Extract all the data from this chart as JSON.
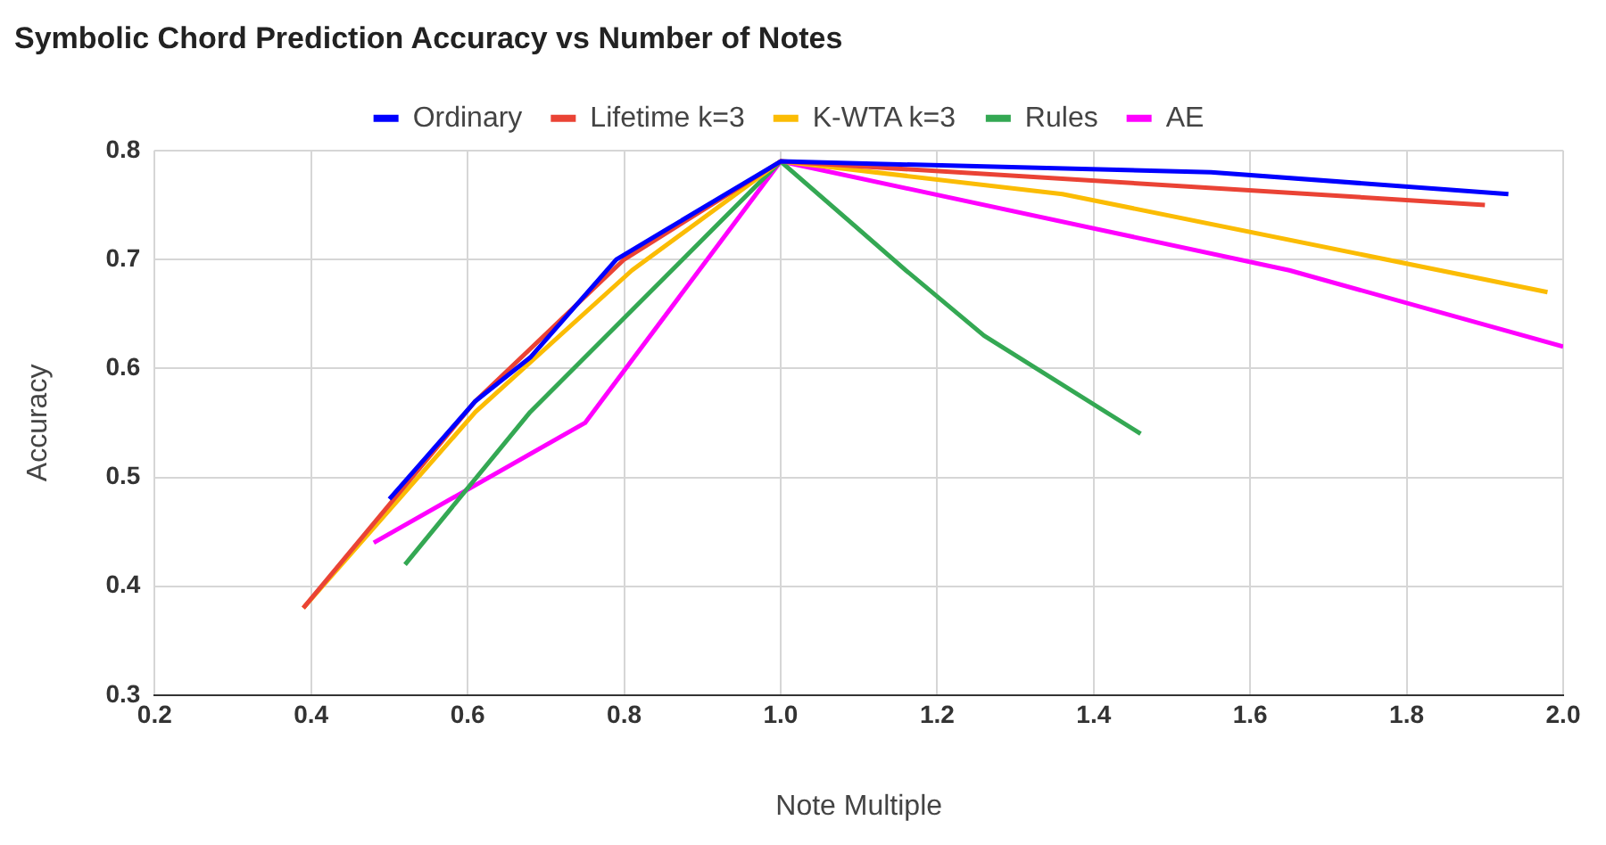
{
  "chart_data": {
    "type": "line",
    "title": "Symbolic Chord Prediction Accuracy vs Number of Notes",
    "xlabel": "Note Multiple",
    "ylabel": "Accuracy",
    "xlim": [
      0.2,
      2.0
    ],
    "xticks": [
      {
        "value": 0.2,
        "label": "0.2"
      },
      {
        "value": 0.4,
        "label": "0.4"
      },
      {
        "value": 0.6,
        "label": "0.6"
      },
      {
        "value": 0.8,
        "label": "0.8"
      },
      {
        "value": 1.0,
        "label": "1.0"
      },
      {
        "value": 1.2,
        "label": "1.2"
      },
      {
        "value": 1.4,
        "label": "1.4"
      },
      {
        "value": 1.6,
        "label": "1.6"
      },
      {
        "value": 1.8,
        "label": "1.8"
      },
      {
        "value": 2.0,
        "label": "2.0"
      }
    ],
    "ylim": [
      0.3,
      0.8
    ],
    "yticks": [
      0.3,
      0.4,
      0.5,
      0.6,
      0.7,
      0.8
    ],
    "grid": true,
    "legend": "top",
    "marker": "none",
    "line_style": "solid",
    "series": [
      {
        "name": "Ordinary",
        "color": "#0000ff",
        "x": [
          0.5,
          0.61,
          0.68,
          0.79,
          1.0,
          1.55,
          1.93
        ],
        "values": [
          0.48,
          0.57,
          0.61,
          0.7,
          0.79,
          0.78,
          0.76
        ]
      },
      {
        "name": "Lifetime k=3",
        "color": "#ea4335",
        "x": [
          0.39,
          0.61,
          0.8,
          1.0,
          1.9
        ],
        "values": [
          0.38,
          0.57,
          0.7,
          0.79,
          0.75
        ]
      },
      {
        "name": "K-WTA k=3",
        "color": "#fbbc04",
        "x": [
          0.39,
          0.61,
          0.81,
          1.0,
          1.36,
          1.98
        ],
        "values": [
          0.38,
          0.56,
          0.69,
          0.79,
          0.76,
          0.67
        ]
      },
      {
        "name": "Rules",
        "color": "#34a853",
        "x": [
          0.52,
          0.68,
          1.0,
          1.16,
          1.26,
          1.46
        ],
        "values": [
          0.42,
          0.56,
          0.79,
          0.69,
          0.63,
          0.54
        ]
      },
      {
        "name": "AE",
        "color": "#ff00ff",
        "x": [
          0.48,
          0.75,
          1.0,
          1.65,
          2.0
        ],
        "values": [
          0.44,
          0.55,
          0.79,
          0.69,
          0.62
        ]
      }
    ]
  }
}
